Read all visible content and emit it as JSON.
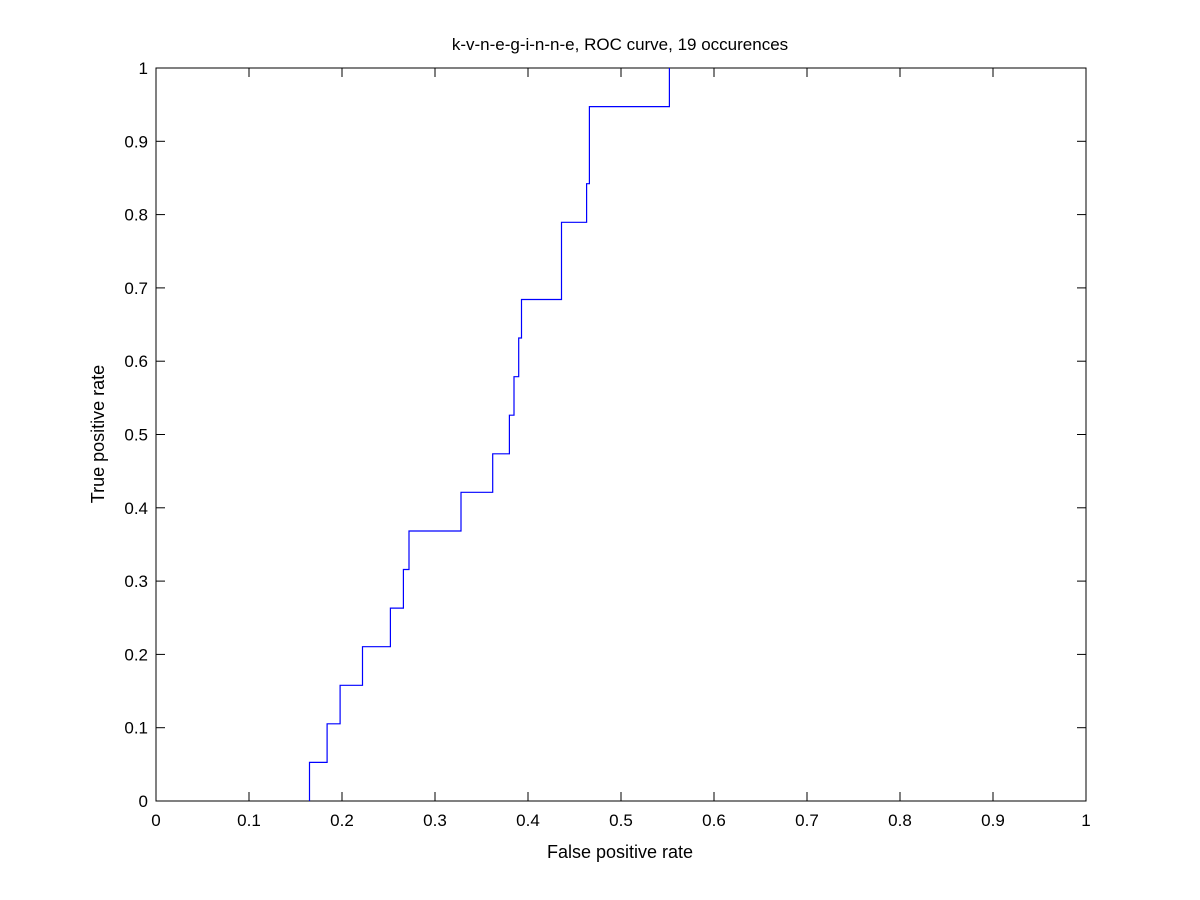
{
  "chart_data": {
    "type": "line",
    "title": "k-v-n-e-g-i-n-n-e, ROC curve, 19 occurences",
    "xlabel": "False positive rate",
    "ylabel": "True positive rate",
    "xlim": [
      0,
      1
    ],
    "ylim": [
      0,
      1
    ],
    "xticks": [
      "0",
      "0.1",
      "0.2",
      "0.3",
      "0.4",
      "0.5",
      "0.6",
      "0.7",
      "0.8",
      "0.9",
      "1"
    ],
    "yticks": [
      "0",
      "0.1",
      "0.2",
      "0.3",
      "0.4",
      "0.5",
      "0.6",
      "0.7",
      "0.8",
      "0.9",
      "1"
    ],
    "grid": false,
    "step": true,
    "series": [
      {
        "color": "#0000ff",
        "x": [
          0.165,
          0.165,
          0.184,
          0.184,
          0.198,
          0.198,
          0.222,
          0.222,
          0.252,
          0.252,
          0.266,
          0.266,
          0.272,
          0.272,
          0.328,
          0.328,
          0.362,
          0.362,
          0.38,
          0.38,
          0.385,
          0.385,
          0.39,
          0.39,
          0.393,
          0.393,
          0.436,
          0.436,
          0.463,
          0.463,
          0.466,
          0.466,
          0.552,
          0.552
        ],
        "y": [
          0,
          0.0526,
          0.0526,
          0.1053,
          0.1053,
          0.1579,
          0.1579,
          0.2105,
          0.2105,
          0.2632,
          0.2632,
          0.3158,
          0.3158,
          0.3684,
          0.3684,
          0.4211,
          0.4211,
          0.4737,
          0.4737,
          0.5263,
          0.5263,
          0.5789,
          0.5789,
          0.6316,
          0.6316,
          0.6842,
          0.6842,
          0.7895,
          0.7895,
          0.8421,
          0.8421,
          0.9474,
          0.9474,
          1.0
        ]
      }
    ]
  }
}
